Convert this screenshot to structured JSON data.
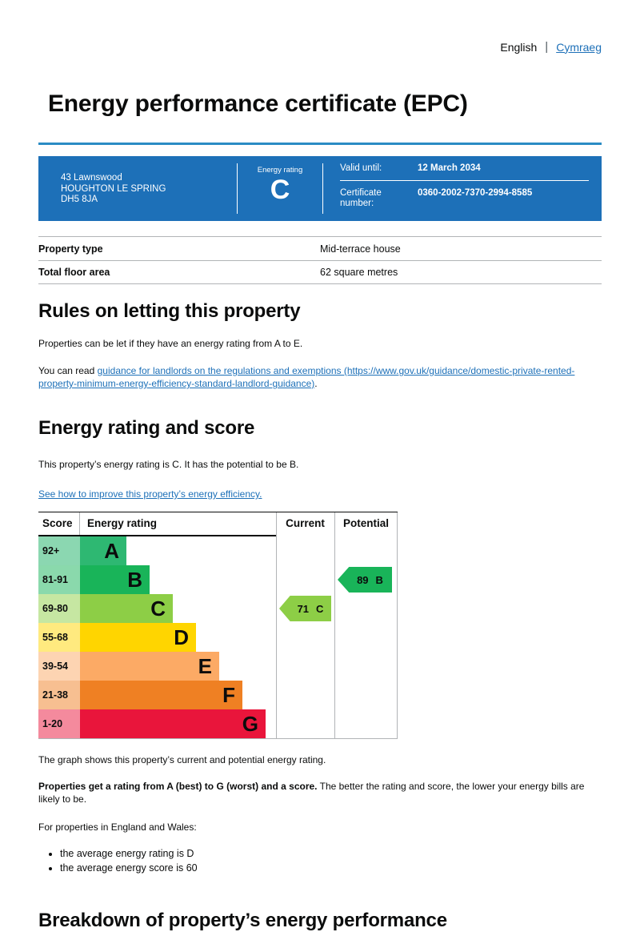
{
  "language_switcher": {
    "current": "English",
    "separator": "|",
    "link": "Cymraeg"
  },
  "page_title": "Energy performance certificate (EPC)",
  "summary_box": {
    "address_lines": [
      "43 Lawnswood",
      "HOUGHTON LE SPRING",
      "DH5 8JA"
    ],
    "energy_rating_label": "Energy rating",
    "energy_rating": "C",
    "valid_until_label": "Valid until:",
    "valid_until": "12 March 2034",
    "certificate_number_label": "Certificate number:",
    "certificate_number": "0360-2002-7370-2994-8585"
  },
  "property_facts": {
    "rows": [
      {
        "label": "Property type",
        "value": "Mid-terrace house"
      },
      {
        "label": "Total floor area",
        "value": "62 square metres"
      }
    ]
  },
  "rules_section": {
    "heading": "Rules on letting this property",
    "paragraph1": "Properties can be let if they have an energy rating from A to E.",
    "paragraph2_prefix": "You can read ",
    "link_text": "guidance for landlords on the regulations and exemptions (https://www.gov.uk/guidance/domestic-private-rented-property-minimum-energy-efficiency-standard-landlord-guidance)",
    "paragraph2_suffix": "."
  },
  "rating_section": {
    "heading": "Energy rating and score",
    "summary": "This property’s energy rating is C. It has the potential to be B.",
    "improve_link": "See how to improve this property’s energy efficiency."
  },
  "chart_data": {
    "type": "bar",
    "title": "EPC energy rating bands with current and potential score arrows",
    "columns": [
      "Score",
      "Energy rating",
      "Current",
      "Potential"
    ],
    "bands": [
      {
        "score_range": "92+",
        "letter": "A",
        "color": "#2eb872",
        "score_bg": "#8bd7b1"
      },
      {
        "score_range": "81-91",
        "letter": "B",
        "color": "#19b459",
        "score_bg": "#8ad9ac"
      },
      {
        "score_range": "69-80",
        "letter": "C",
        "color": "#8dce46",
        "score_bg": "#c6e7a2"
      },
      {
        "score_range": "55-68",
        "letter": "D",
        "color": "#ffd500",
        "score_bg": "#ffea7f"
      },
      {
        "score_range": "39-54",
        "letter": "E",
        "color": "#fcaa65",
        "score_bg": "#fdd4b2"
      },
      {
        "score_range": "21-38",
        "letter": "F",
        "color": "#ef8023",
        "score_bg": "#f7bf91"
      },
      {
        "score_range": "1-20",
        "letter": "G",
        "color": "#e9153b",
        "score_bg": "#f48a9d"
      }
    ],
    "current": {
      "score": "71",
      "band": "C",
      "row_index": 2,
      "color": "#8dce46"
    },
    "potential": {
      "score": "89",
      "band": "B",
      "row_index": 1,
      "color": "#19b459"
    },
    "caption": "The graph shows this property’s current and potential energy rating."
  },
  "explanation": {
    "bold_lead": "Properties get a rating from A (best) to G (worst) and a score.",
    "rest": " The better the rating and score, the lower your energy bills are likely to be.",
    "averages_intro": "For properties in England and Wales:",
    "bullets": [
      "the average energy rating is D",
      "the average energy score is 60"
    ]
  },
  "breakdown_heading": "Breakdown of property’s energy performance",
  "colors": {
    "govuk_blue_box": "#1d70b8",
    "title_rule_blue": "#2b8cc4",
    "link_blue": "#1d70b8",
    "chart_border_dark": "#0b0c0c",
    "chart_border_light": "#b1b4b6"
  }
}
